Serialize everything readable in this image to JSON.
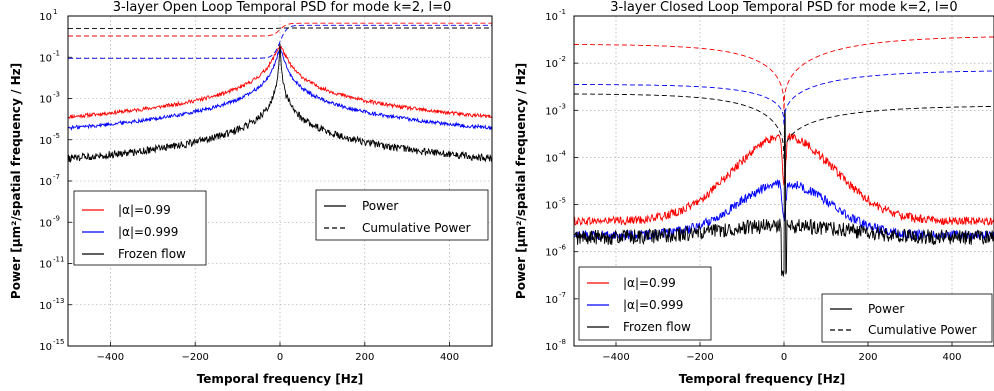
{
  "chart_data": [
    {
      "type": "line",
      "title": "3-layer Open Loop Temporal PSD for mode k=2, l=0",
      "xlabel": "Temporal frequency [Hz]",
      "ylabel": "Power [µm²/spatial frequency / Hz]",
      "xlim": [
        -500,
        500
      ],
      "ylim_exponents": [
        -15,
        1
      ],
      "y_scale": "log",
      "grid": true,
      "x_ticks": [
        "−400",
        "−200",
        "0",
        "200",
        "400"
      ],
      "x_tick_values": [
        -400,
        -200,
        0,
        200,
        400
      ],
      "y_ticks_exponents": [
        -15,
        -13,
        -11,
        -9,
        -7,
        -5,
        -3,
        -1,
        1
      ],
      "y_tick_labels": [
        "10",
        "10",
        "10",
        "10",
        "10",
        "10",
        "10",
        "10",
        "10"
      ],
      "y_tick_exponent_labels": [
        "-15",
        "-13",
        "-11",
        "-9",
        "-7",
        "-5",
        "-3",
        "-1",
        "1"
      ],
      "legend_alpha": {
        "placement": "lower-left",
        "entries": [
          {
            "label": "|α|=0.99",
            "color": "#ff0000"
          },
          {
            "label": "|α|=0.999",
            "color": "#0000ff"
          },
          {
            "label": "Frozen flow",
            "color": "#000000"
          }
        ]
      },
      "legend_style": {
        "placement": "center-right",
        "entries": [
          {
            "label": "Power",
            "style": "solid"
          },
          {
            "label": "Cumulative Power",
            "style": "dashed"
          }
        ]
      },
      "series": [
        {
          "ref": "alpha-0.99",
          "color": "#ff0000",
          "style": "solid",
          "model": "lorentz",
          "floor_log10": -5.65,
          "peak_log10": -0.5,
          "width_hz": 10,
          "noise": 0.09
        },
        {
          "ref": "alpha-0.999",
          "color": "#0000ff",
          "style": "solid",
          "model": "lorentz",
          "floor_log10": -5.9,
          "peak_log10": -0.6,
          "width_hz": 6,
          "noise": 0.09
        },
        {
          "ref": "frozen",
          "color": "#000000",
          "style": "solid",
          "model": "lorentz",
          "floor_log10": -13.3,
          "peak_log10": -0.2,
          "width_hz": 0.7,
          "noise": 0.18,
          "spikes_hz": [
            -485,
            -365,
            -300,
            -215,
            145,
            270,
            300,
            355,
            420,
            490
          ],
          "spike_log10": [
            -12.3,
            -12.0,
            -11.8,
            -12.2,
            -12.6,
            -12.2,
            -12.5,
            -11.6,
            -12.3,
            -12.2
          ]
        },
        {
          "ref": "cum-0.99",
          "color": "#ff0000",
          "style": "dashed",
          "model": "step",
          "left_log10": 0.03,
          "right_log10": 0.65,
          "transition_hz": 8
        },
        {
          "ref": "cum-0.999",
          "color": "#0000ff",
          "style": "dashed",
          "model": "step",
          "left_log10": -1.05,
          "right_log10": 0.55,
          "transition_hz": 8
        },
        {
          "ref": "cum-frozen",
          "color": "#000000",
          "style": "dashed",
          "model": "step",
          "left_log10": 0.4,
          "right_log10": 0.42,
          "transition_hz": 5
        }
      ]
    },
    {
      "type": "line",
      "title": "3-layer Closed Loop Temporal PSD for mode k=2, l=0",
      "xlabel": "Temporal frequency [Hz]",
      "ylabel": "Power [µm²/spatial frequency / Hz]",
      "xlim": [
        -500,
        500
      ],
      "ylim_exponents": [
        -8,
        -1
      ],
      "y_scale": "log",
      "grid": true,
      "x_ticks": [
        "−400",
        "−200",
        "0",
        "200",
        "400"
      ],
      "x_tick_values": [
        -400,
        -200,
        0,
        200,
        400
      ],
      "y_ticks_exponents": [
        -8,
        -7,
        -6,
        -5,
        -4,
        -3,
        -2,
        -1
      ],
      "y_tick_labels": [
        "10",
        "10",
        "10",
        "10",
        "10",
        "10",
        "10",
        "10"
      ],
      "y_tick_exponent_labels": [
        "-8",
        "-7",
        "-6",
        "-5",
        "-4",
        "-3",
        "-2",
        "-1"
      ],
      "legend_alpha": {
        "placement": "lower-left",
        "entries": [
          {
            "label": "|α|=0.99",
            "color": "#ff0000"
          },
          {
            "label": "|α|=0.999",
            "color": "#0000ff"
          },
          {
            "label": "Frozen flow",
            "color": "#000000"
          }
        ]
      },
      "legend_style": {
        "placement": "lower-right",
        "entries": [
          {
            "label": "Power",
            "style": "solid"
          },
          {
            "label": "Cumulative Power",
            "style": "dashed"
          }
        ]
      },
      "series": [
        {
          "ref": "alpha-0.99",
          "color": "#ff0000",
          "style": "solid",
          "model": "gauss",
          "floor_log10": -5.35,
          "peak_log10": -3.55,
          "width_hz": 120,
          "noise": 0.09,
          "notch_depth": 1.0
        },
        {
          "ref": "alpha-0.999",
          "color": "#0000ff",
          "style": "solid",
          "model": "gauss",
          "floor_log10": -5.65,
          "peak_log10": -4.55,
          "width_hz": 110,
          "noise": 0.1,
          "notch_depth": 0.8
        },
        {
          "ref": "frozen",
          "color": "#000000",
          "style": "solid",
          "model": "flat",
          "floor_log10": -5.7,
          "peak_log10": -3.0,
          "width_hz": 3,
          "noise": 0.16,
          "notch_depth": 0.0
        },
        {
          "ref": "cum-0.99",
          "color": "#ff0000",
          "style": "dashed",
          "model": "cum",
          "left_log10": -1.6,
          "center_log10": -3.0,
          "right_log10": -1.42
        },
        {
          "ref": "cum-0.999",
          "color": "#0000ff",
          "style": "dashed",
          "model": "cum",
          "left_log10": -2.45,
          "center_log10": -3.3,
          "right_log10": -2.15
        },
        {
          "ref": "cum-frozen",
          "color": "#000000",
          "style": "dashed",
          "model": "cum",
          "left_log10": -2.65,
          "center_log10": -4.05,
          "right_log10": -2.9
        }
      ]
    }
  ]
}
